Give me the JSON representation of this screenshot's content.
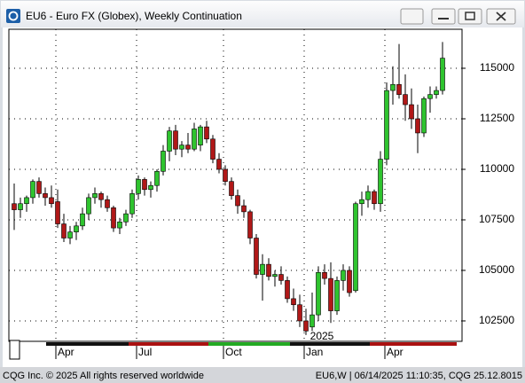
{
  "chart_data": {
    "type": "candlestick",
    "title": "EU6 - Euro FX (Globex), Weekly Continuation",
    "categories": [
      null,
      null,
      null,
      null,
      null,
      null,
      null,
      "Apr",
      null,
      null,
      null,
      null,
      null,
      null,
      null,
      null,
      null,
      null,
      null,
      null,
      "Jul",
      null,
      null,
      null,
      null,
      null,
      null,
      null,
      null,
      null,
      null,
      null,
      null,
      null,
      "Oct",
      null,
      null,
      null,
      null,
      null,
      null,
      null,
      null,
      null,
      null,
      null,
      null,
      "Jan",
      null,
      null,
      null,
      null,
      null,
      null,
      null,
      null,
      null,
      null,
      null,
      null,
      "Apr",
      null,
      null,
      null,
      null,
      null,
      null,
      null,
      null,
      null
    ],
    "year_label": "2025",
    "open": [
      108300,
      108000,
      108300,
      108600,
      109400,
      108800,
      108600,
      108400,
      107300,
      106600,
      106900,
      107200,
      107800,
      108600,
      108800,
      108500,
      108100,
      107100,
      107400,
      107800,
      108800,
      109500,
      109000,
      109200,
      109900,
      110900,
      111900,
      111000,
      111200,
      111000,
      111200,
      112100,
      111500,
      110500,
      110000,
      109400,
      108700,
      108200,
      107900,
      106600,
      104800,
      105300,
      104700,
      104800,
      104500,
      103600,
      103300,
      102500,
      102200,
      102800,
      104900,
      104600,
      103000,
      104500,
      105000,
      104000,
      108300,
      108500,
      108900,
      108300,
      110500,
      113900,
      114200,
      113700,
      113200,
      112500,
      111800,
      113500,
      113700,
      113900
    ],
    "high": [
      109300,
      108600,
      108700,
      109500,
      109600,
      109100,
      109200,
      109000,
      107800,
      107200,
      107400,
      108100,
      108800,
      109100,
      108900,
      108700,
      108200,
      107600,
      108000,
      109000,
      109700,
      109600,
      109400,
      110000,
      111200,
      112100,
      112200,
      111400,
      111800,
      112300,
      112200,
      112400,
      111700,
      110800,
      110200,
      109600,
      109000,
      108500,
      108000,
      106800,
      105800,
      105600,
      105000,
      105200,
      104700,
      104100,
      103800,
      103100,
      103900,
      105200,
      105300,
      105400,
      104700,
      105300,
      105200,
      108400,
      108900,
      109200,
      109000,
      110900,
      114300,
      115100,
      116200,
      114700,
      114000,
      113200,
      113600,
      114100,
      114100,
      116300
    ],
    "low": [
      107000,
      107600,
      107900,
      108300,
      108600,
      108200,
      108100,
      107100,
      106400,
      106300,
      106500,
      107000,
      107500,
      108300,
      108100,
      107900,
      106900,
      106800,
      107200,
      107600,
      108500,
      108700,
      108600,
      108900,
      109700,
      110400,
      110700,
      110600,
      110800,
      110900,
      110900,
      111300,
      110300,
      109800,
      109200,
      108500,
      107800,
      107600,
      106300,
      104600,
      103500,
      104500,
      104200,
      104300,
      103400,
      103000,
      102200,
      101800,
      102000,
      102500,
      104300,
      102400,
      102800,
      104000,
      103700,
      103900,
      107700,
      108100,
      108000,
      107900,
      110200,
      113200,
      113500,
      112400,
      112000,
      110800,
      111600,
      112800,
      113500,
      113700
    ],
    "close": [
      108000,
      108300,
      108600,
      109400,
      108800,
      108600,
      108300,
      107300,
      106600,
      106900,
      107200,
      107800,
      108600,
      108800,
      108500,
      108100,
      107100,
      107400,
      107800,
      108800,
      109500,
      109000,
      109200,
      109900,
      110900,
      111900,
      111000,
      111200,
      111000,
      112000,
      112100,
      111500,
      110500,
      110000,
      109400,
      108700,
      108200,
      107900,
      106600,
      104800,
      105300,
      104700,
      104800,
      104500,
      103600,
      103300,
      102500,
      102000,
      102800,
      104900,
      104600,
      103000,
      104500,
      105000,
      103900,
      108300,
      108500,
      108900,
      108300,
      110500,
      113900,
      114200,
      113700,
      113200,
      112500,
      111800,
      113500,
      113700,
      113900,
      115500
    ],
    "up_color": "#2fc42f",
    "down_color": "#b01818",
    "ylim": [
      101490,
      116930
    ],
    "yticks": [
      102500,
      105000,
      107500,
      110000,
      112500,
      115000
    ],
    "grid": true
  },
  "footer": {
    "left": "CQG Inc. © 2025 All rights reserved worldwide",
    "right": "EU6,W | 06/14/2025 11:10:35, CQG 25.12.8015"
  }
}
